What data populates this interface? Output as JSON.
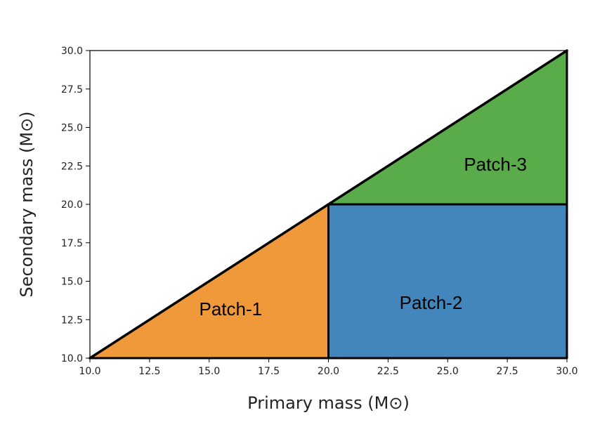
{
  "chart_data": {
    "type": "area",
    "xlabel": "Primary mass (M⊙)",
    "ylabel": "Secondary mass (M⊙)",
    "xlim": [
      10.0,
      30.0
    ],
    "ylim": [
      10.0,
      30.0
    ],
    "x_ticks": [
      "10.0",
      "12.5",
      "15.0",
      "17.5",
      "20.0",
      "22.5",
      "25.0",
      "27.5",
      "30.0"
    ],
    "y_ticks": [
      "10.0",
      "12.5",
      "15.0",
      "17.5",
      "20.0",
      "22.5",
      "25.0",
      "27.5",
      "30.0"
    ],
    "grid": false,
    "regions": [
      {
        "label": "Patch-1",
        "color": "#f0993a",
        "polygon": [
          [
            10,
            10
          ],
          [
            20,
            10
          ],
          [
            20,
            20
          ]
        ],
        "label_pos": [
          15.9,
          13.2
        ]
      },
      {
        "label": "Patch-2",
        "color": "#4386bb",
        "polygon": [
          [
            20,
            10
          ],
          [
            30,
            10
          ],
          [
            30,
            20
          ],
          [
            20,
            20
          ]
        ],
        "label_pos": [
          24.3,
          13.6
        ]
      },
      {
        "label": "Patch-3",
        "color": "#5aab4a",
        "polygon": [
          [
            20,
            20
          ],
          [
            30,
            20
          ],
          [
            30,
            30
          ]
        ],
        "label_pos": [
          27.0,
          22.6
        ]
      }
    ],
    "boundary_line": {
      "label": "diagonal",
      "points": [
        [
          10,
          10
        ],
        [
          30,
          30
        ]
      ]
    }
  }
}
